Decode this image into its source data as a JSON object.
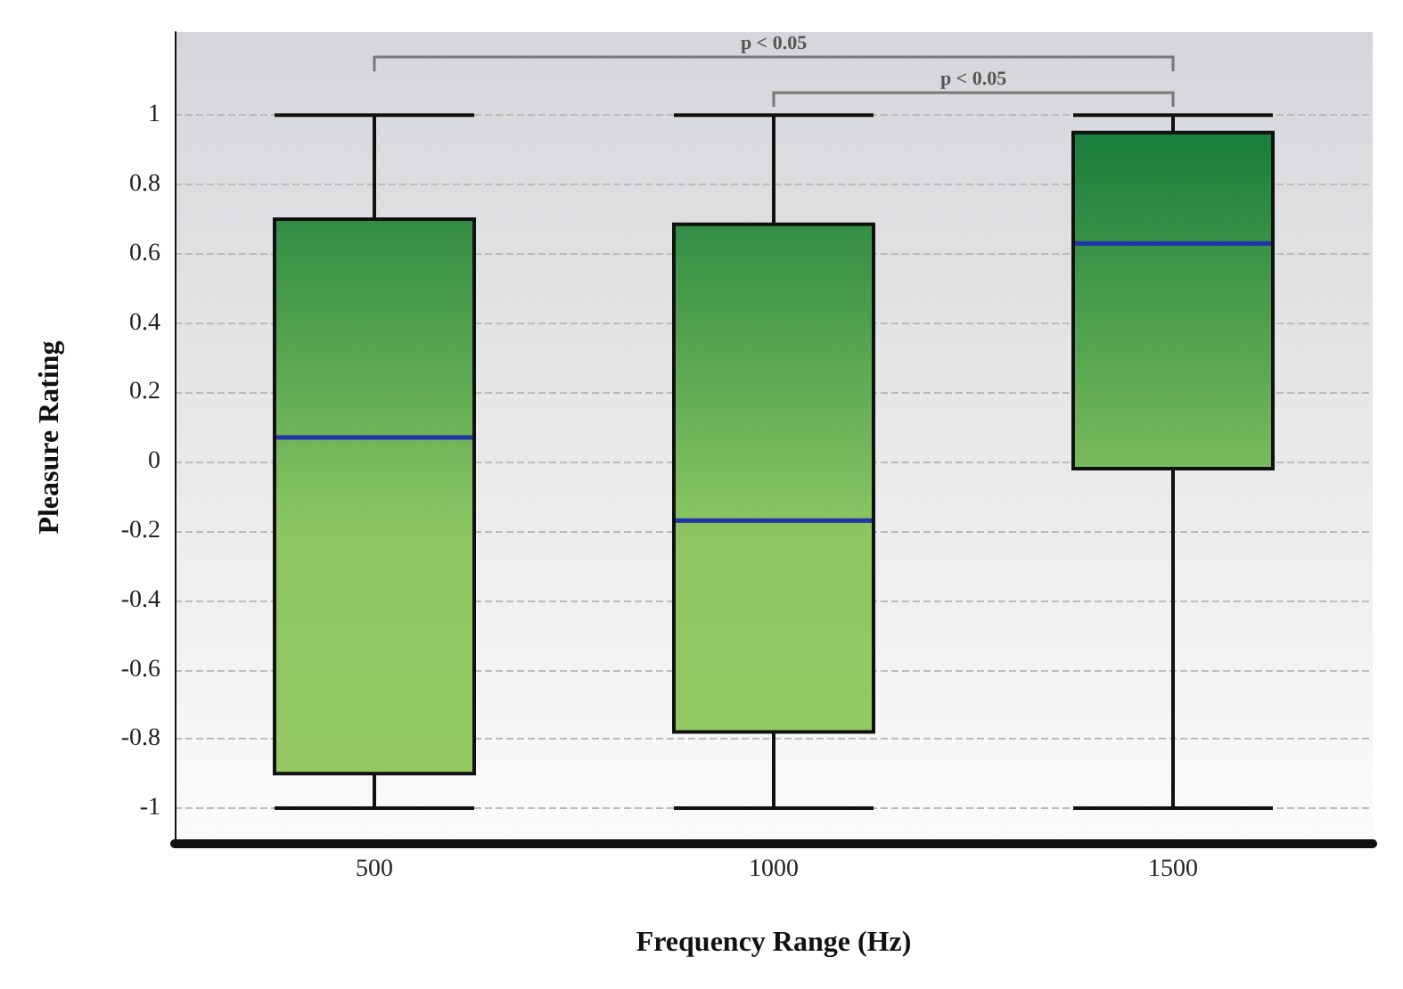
{
  "chart_data": {
    "type": "box",
    "xlabel": "Frequency Range (Hz)",
    "ylabel": "Pleasure Rating",
    "categories": [
      "500",
      "1000",
      "1500"
    ],
    "boxes": [
      {
        "low": -1,
        "q1": -0.9,
        "median": 0.07,
        "q3": 0.7,
        "high": 1
      },
      {
        "low": -1,
        "q1": -0.78,
        "median": -0.17,
        "q3": 0.685,
        "high": 1
      },
      {
        "low": -1,
        "q1": -0.02,
        "median": 0.63,
        "q3": 0.95,
        "high": 1
      }
    ],
    "ylim": [
      -1.1,
      1.24
    ],
    "yticks": [
      -1,
      -0.8,
      -0.6,
      -0.4,
      -0.2,
      0,
      0.2,
      0.4,
      0.6,
      0.8,
      1
    ],
    "grid": "y",
    "annotations": [
      "p < 0.05",
      "p < 0.05"
    ]
  }
}
